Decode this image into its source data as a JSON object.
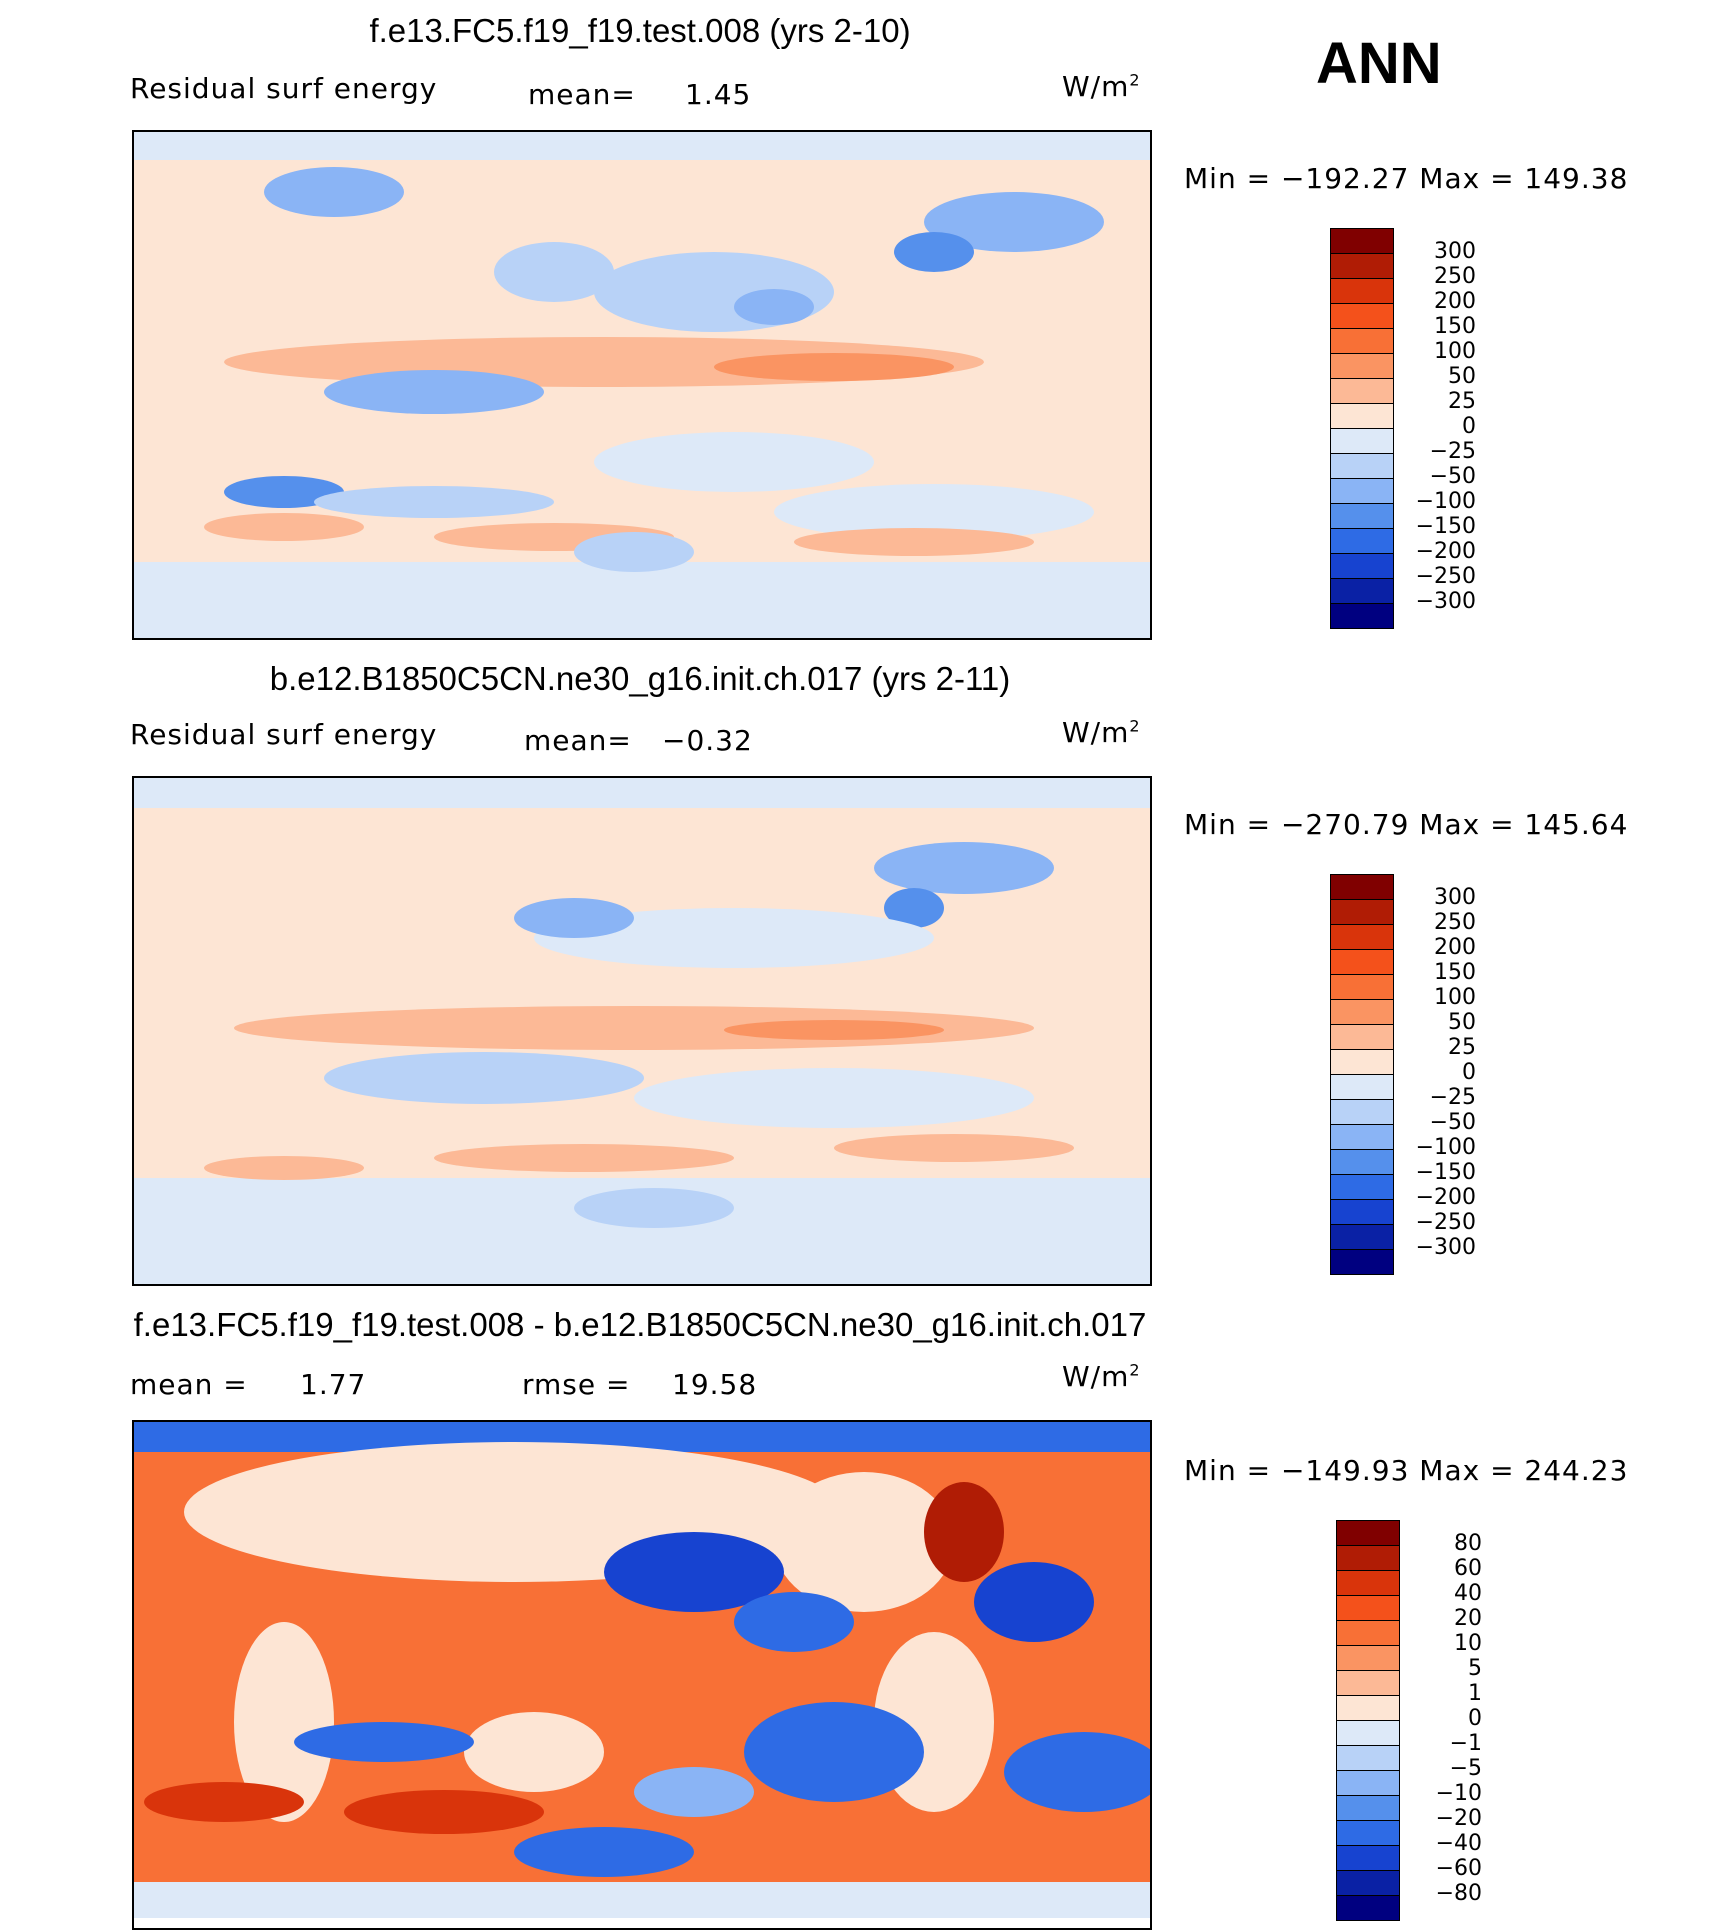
{
  "season": "ANN",
  "panels": [
    {
      "title": "f.e13.FC5.f19_f19.test.008 (yrs 2-10)",
      "left_label": "Residual surf energy",
      "stat1_label": "mean=",
      "stat1_value": "1.45",
      "stat2_label": "",
      "stat2_value": "",
      "units": "W/m",
      "units_exp": "2",
      "minmax": "Min = −192.27 Max = 149.38",
      "colorbar": {
        "labels": [
          "300",
          "250",
          "200",
          "150",
          "100",
          "50",
          "25",
          "0",
          "−25",
          "−50",
          "−100",
          "−150",
          "−200",
          "−250",
          "−300"
        ],
        "colors": [
          "#800000",
          "#b01c05",
          "#d9340b",
          "#f4511b",
          "#f87036",
          "#fa9462",
          "#fcb996",
          "#fde5d4",
          "#dde9f8",
          "#b8d2f7",
          "#8ab4f5",
          "#5590ec",
          "#2e6be5",
          "#1743d0",
          "#0a21a5",
          "#000080"
        ]
      }
    },
    {
      "title": "b.e12.B1850C5CN.ne30_g16.init.ch.017 (yrs 2-11)",
      "left_label": "Residual surf energy",
      "stat1_label": "mean=",
      "stat1_value": "−0.32",
      "stat2_label": "",
      "stat2_value": "",
      "units": "W/m",
      "units_exp": "2",
      "minmax": "Min = −270.79 Max = 145.64",
      "colorbar": {
        "labels": [
          "300",
          "250",
          "200",
          "150",
          "100",
          "50",
          "25",
          "0",
          "−25",
          "−50",
          "−100",
          "−150",
          "−200",
          "−250",
          "−300"
        ],
        "colors": [
          "#800000",
          "#b01c05",
          "#d9340b",
          "#f4511b",
          "#f87036",
          "#fa9462",
          "#fcb996",
          "#fde5d4",
          "#dde9f8",
          "#b8d2f7",
          "#8ab4f5",
          "#5590ec",
          "#2e6be5",
          "#1743d0",
          "#0a21a5",
          "#000080"
        ]
      }
    },
    {
      "title": "f.e13.FC5.f19_f19.test.008 - b.e12.B1850C5CN.ne30_g16.init.ch.017",
      "left_label": "mean =",
      "stat1_label": "",
      "stat1_value": "1.77",
      "stat2_label": "rmse =",
      "stat2_value": "19.58",
      "units": "W/m",
      "units_exp": "2",
      "minmax": "Min = −149.93 Max = 244.23",
      "colorbar": {
        "labels": [
          "80",
          "60",
          "40",
          "20",
          "10",
          "5",
          "1",
          "0",
          "−1",
          "−5",
          "−10",
          "−20",
          "−40",
          "−60",
          "−80"
        ],
        "colors": [
          "#800000",
          "#b01c05",
          "#d9340b",
          "#f4511b",
          "#f87036",
          "#fa9462",
          "#fcb996",
          "#fde5d4",
          "#dde9f8",
          "#b8d2f7",
          "#8ab4f5",
          "#5590ec",
          "#2e6be5",
          "#1743d0",
          "#0a21a5",
          "#000080"
        ]
      }
    }
  ]
}
